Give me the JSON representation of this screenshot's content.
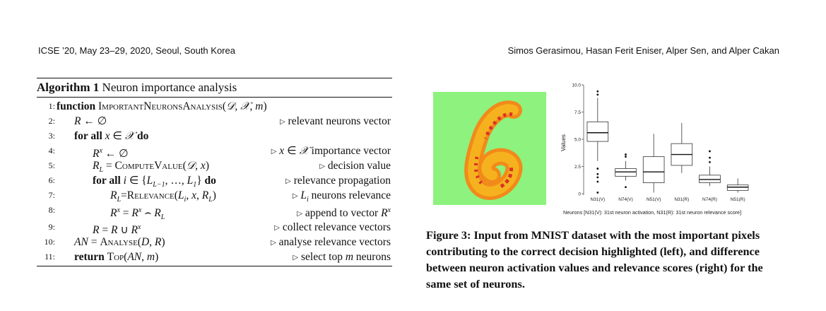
{
  "header": {
    "left": "ICSE ’20, May 23–29, 2020, Seoul, South Korea",
    "right": "Simos Gerasimou, Hasan Ferit Eniser, Alper Sen, and Alper Cakan"
  },
  "algorithm": {
    "label": "Algorithm 1",
    "title": "Neuron importance analysis",
    "lines": [
      {
        "no": "1:",
        "comment": ""
      },
      {
        "no": "2:",
        "comment": "relevant neurons vector"
      },
      {
        "no": "3:",
        "comment": ""
      },
      {
        "no": "4:",
        "comment": "importance vector"
      },
      {
        "no": "5:",
        "comment": "decision value"
      },
      {
        "no": "6:",
        "comment": "relevance propagation"
      },
      {
        "no": "7:",
        "comment": "neurons relevance"
      },
      {
        "no": "8:",
        "comment": "append to vector"
      },
      {
        "no": "9:",
        "comment": "collect relevance vectors"
      },
      {
        "no": "10:",
        "comment": "analyse relevance vectors"
      },
      {
        "no": "11:",
        "comment": "select top"
      }
    ]
  },
  "figure": {
    "digit": "6",
    "colors": {
      "background": "#8ef27e",
      "stroke_outer": "#f28a1a",
      "stroke_mid": "#f5b21e",
      "stroke_hot": "#d8322a"
    },
    "caption": "Figure 3: Input from MNIST dataset with the most important pixels contributing to the correct decision highlighted (left), and difference between neuron activation values and relevance scores (right) for the same set of neurons."
  },
  "chart_data": {
    "type": "box",
    "ylabel": "Values",
    "xlabel": "Neurons [N31(V): 31st neuron activation, N31(R): 31st neuron relevance score]",
    "ylim": [
      0,
      10
    ],
    "yticks": [
      "0",
      "2.5",
      "5.0",
      "7.5",
      "10.0"
    ],
    "categories": [
      "N31(V)",
      "N74(V)",
      "N51(V)",
      "N31(R)",
      "N74(R)",
      "N51(R)"
    ],
    "boxes": [
      {
        "lo": 3.0,
        "q1": 4.8,
        "median": 5.6,
        "q3": 6.6,
        "hi": 8.8,
        "outliers": [
          9.4,
          9.1,
          2.3,
          1.8,
          1.5,
          1.1,
          0.1
        ]
      },
      {
        "lo": 1.2,
        "q1": 1.6,
        "median": 2.0,
        "q3": 2.3,
        "hi": 3.0,
        "outliers": [
          3.6,
          3.4,
          0.6
        ]
      },
      {
        "lo": 0.1,
        "q1": 1.0,
        "median": 2.0,
        "q3": 3.4,
        "hi": 5.5,
        "outliers": []
      },
      {
        "lo": 1.9,
        "q1": 2.6,
        "median": 3.6,
        "q3": 4.6,
        "hi": 6.5,
        "outliers": []
      },
      {
        "lo": 0.7,
        "q1": 1.0,
        "median": 1.3,
        "q3": 1.7,
        "hi": 2.5,
        "outliers": [
          3.9,
          3.3,
          2.9
        ]
      },
      {
        "lo": 0.1,
        "q1": 0.3,
        "median": 0.6,
        "q3": 0.8,
        "hi": 1.4,
        "outliers": []
      }
    ]
  }
}
